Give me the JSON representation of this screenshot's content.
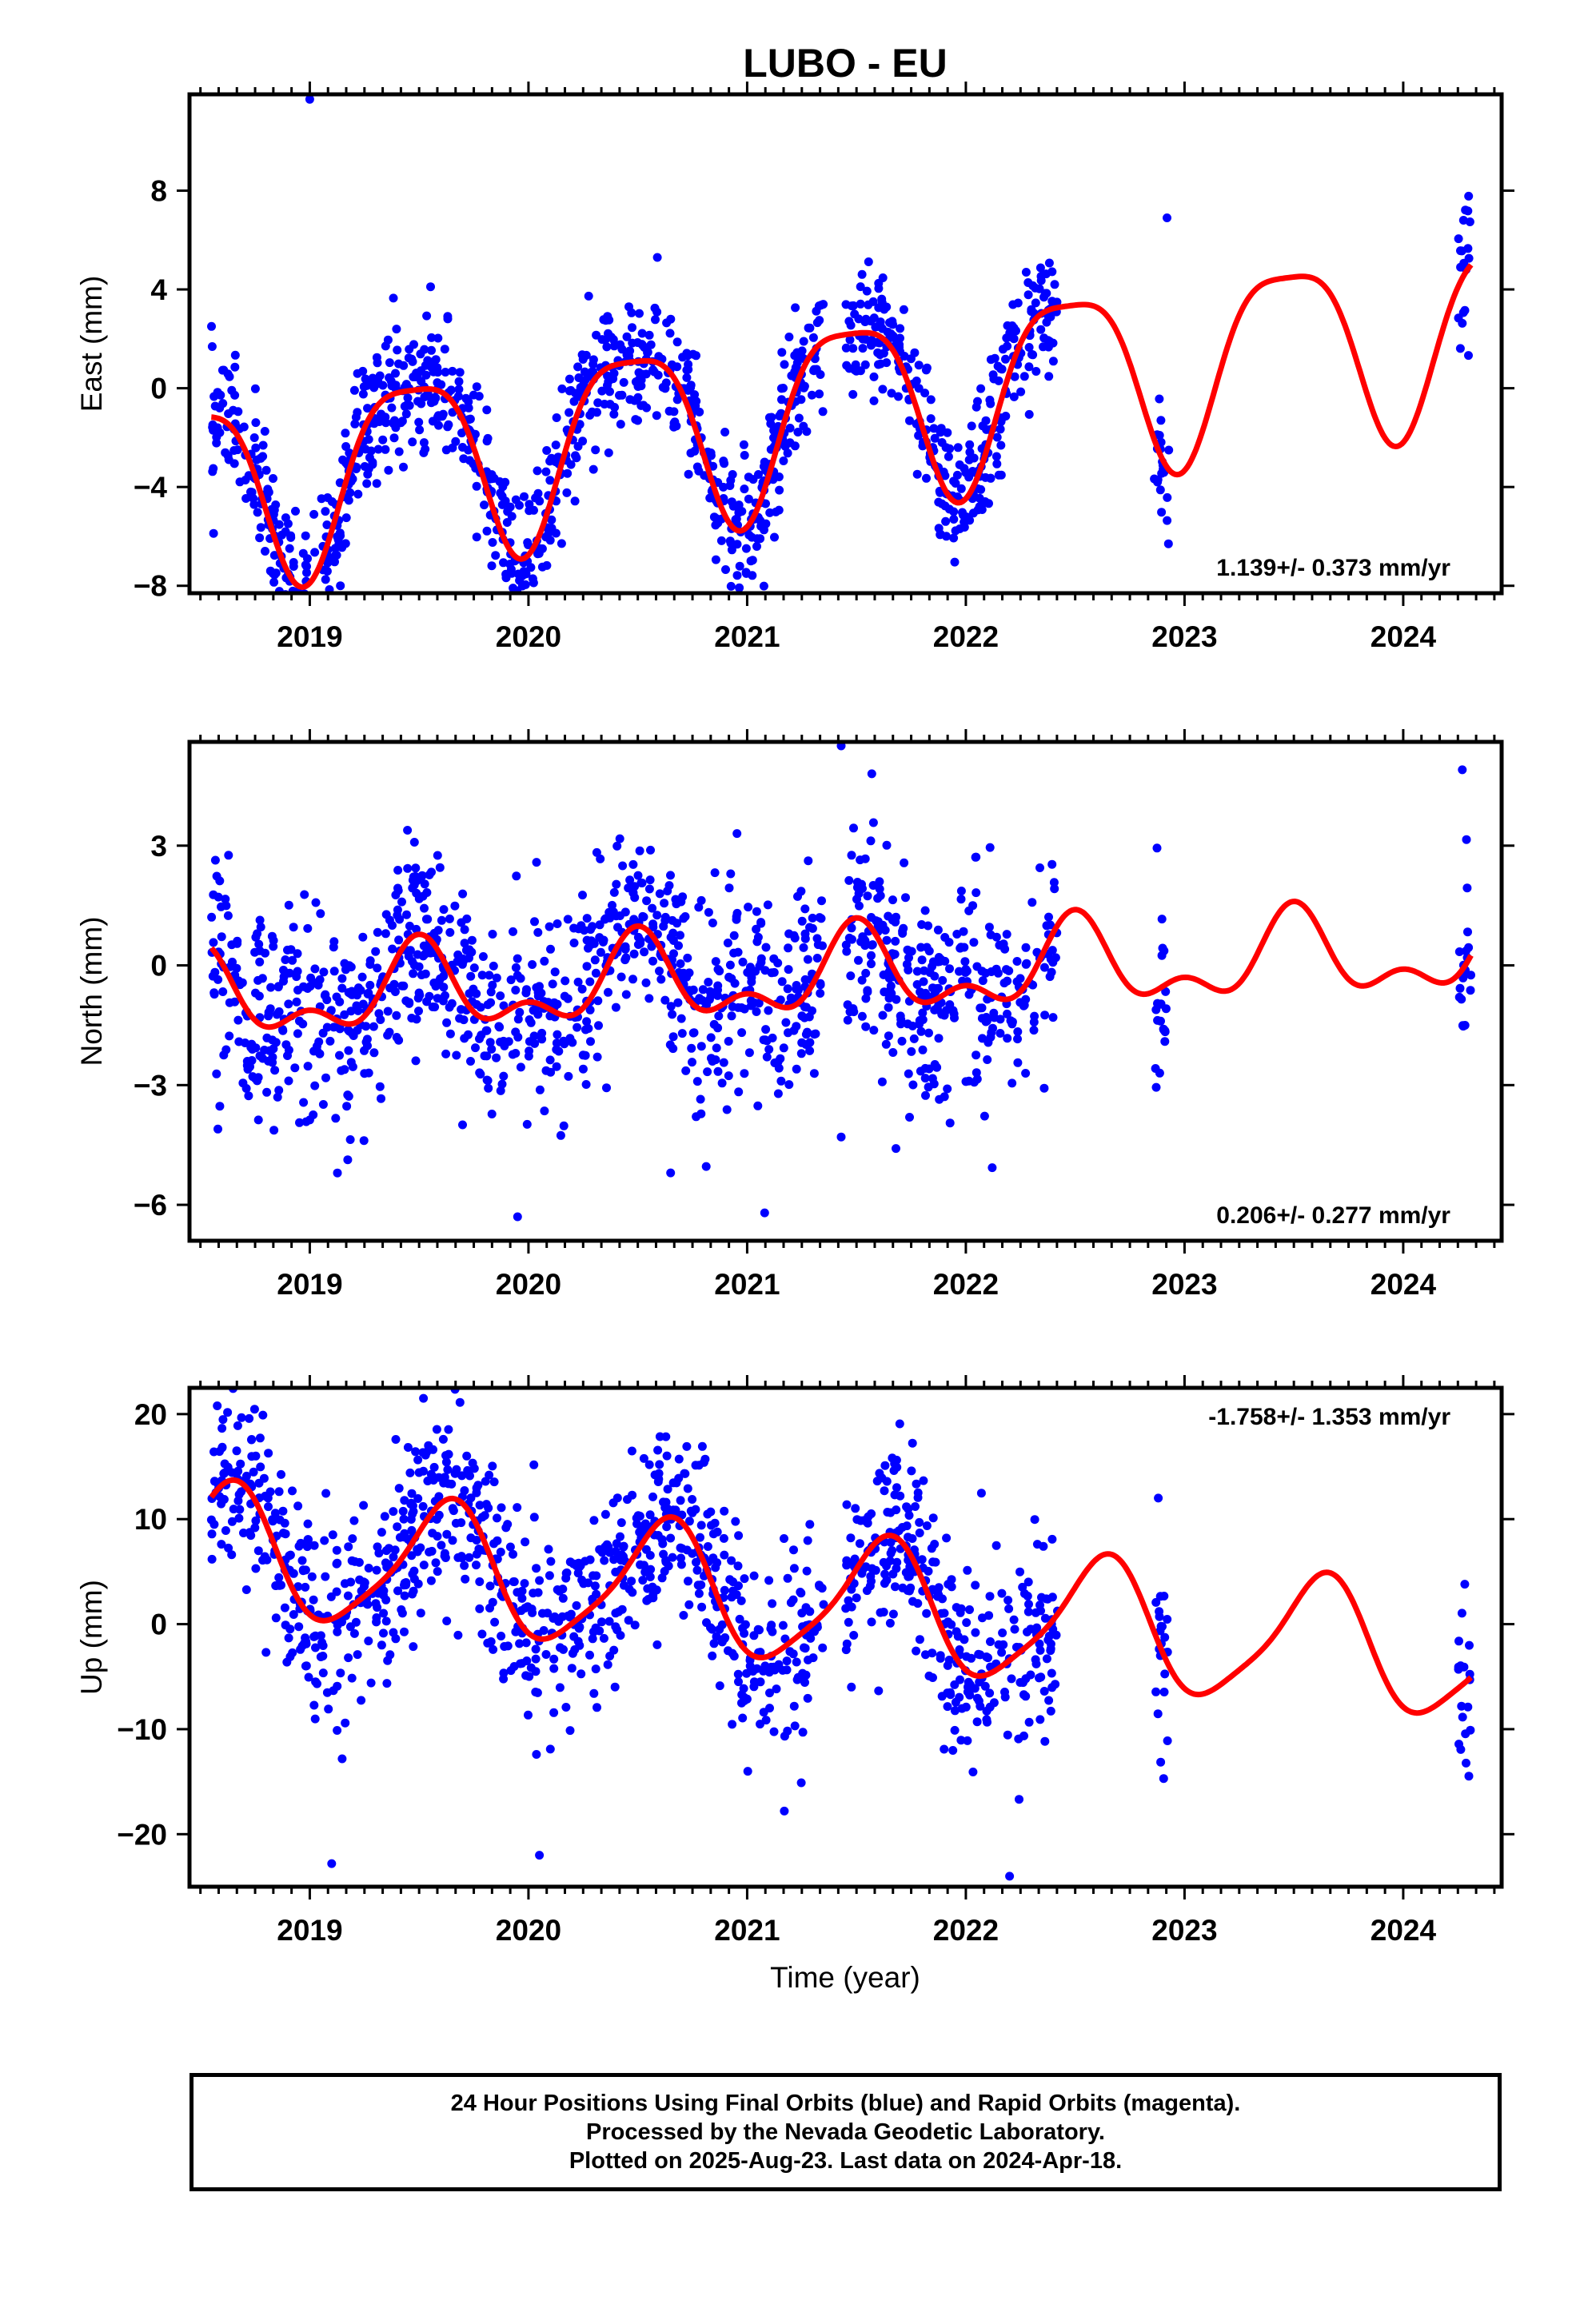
{
  "title": "LUBO - EU",
  "xlabel": "Time (year)",
  "colors": {
    "points": "#0000ff",
    "fit": "#ff0000",
    "frame": "#000000"
  },
  "footer": {
    "line1": "24 Hour Positions Using Final Orbits (blue) and Rapid Orbits (magenta).",
    "line2": "Processed by the Nevada Geodetic Laboratory.",
    "line3": "Plotted on 2025-Aug-23. Last data on 2024-Apr-18."
  },
  "chart_data": [
    {
      "type": "scatter",
      "component": "east",
      "ylabel": "East (mm)",
      "ylim": [
        -8.3,
        11.9
      ],
      "xlim": [
        2018.45,
        2024.45
      ],
      "yticks": [
        8,
        4,
        0,
        -4,
        -8
      ],
      "xticks": [
        2019,
        2020,
        2021,
        2022,
        2023,
        2024
      ],
      "rate_label": "1.139+/- 0.373 mm/yr",
      "rate_position": "bottom-right",
      "fit": {
        "offset": -0.8,
        "rate": 1.139,
        "annual_amp": 3.7,
        "annual_phase": 2019.47,
        "semiannual_amp": 0.9,
        "semiannual_phase": 2019.72
      },
      "noise": 1.35,
      "data_segments": [
        [
          2018.55,
          2019.45
        ],
        [
          2019.45,
          2020.42
        ],
        [
          2020.42,
          2021.35
        ],
        [
          2021.45,
          2022.42
        ],
        [
          2022.86,
          2022.93
        ],
        [
          2024.25,
          2024.31
        ]
      ],
      "outliers": [
        [
          2019.0,
          11.7
        ],
        [
          2019.14,
          -8.0
        ],
        [
          2022.92,
          6.9
        ]
      ]
    },
    {
      "type": "scatter",
      "component": "north",
      "ylabel": "North (mm)",
      "ylim": [
        -6.9,
        5.6
      ],
      "xlim": [
        2018.45,
        2024.45
      ],
      "yticks": [
        3,
        0,
        -3,
        -6
      ],
      "xticks": [
        2019,
        2020,
        2021,
        2022,
        2023,
        2024
      ],
      "rate_label": "0.206+/- 0.277 mm/yr",
      "rate_position": "bottom-right",
      "fit": {
        "offset": -0.3,
        "rate": 0.206,
        "annual_amp": 0.9,
        "annual_phase": 2019.5,
        "semiannual_amp": 0.55,
        "semiannual_phase": 2019.5
      },
      "noise": 1.3,
      "data_segments": [
        [
          2018.55,
          2019.45
        ],
        [
          2019.45,
          2020.42
        ],
        [
          2020.42,
          2021.35
        ],
        [
          2021.45,
          2022.42
        ],
        [
          2022.86,
          2022.93
        ],
        [
          2024.25,
          2024.31
        ]
      ],
      "outliers": [
        [
          2021.43,
          5.5
        ],
        [
          2021.57,
          4.8
        ],
        [
          2019.95,
          -6.3
        ],
        [
          2021.08,
          -6.2
        ],
        [
          2020.65,
          -5.2
        ],
        [
          2021.43,
          -4.3
        ],
        [
          2024.27,
          4.9
        ]
      ]
    },
    {
      "type": "scatter",
      "component": "up",
      "ylabel": "Up (mm)",
      "ylim": [
        -25.0,
        22.5
      ],
      "xlim": [
        2018.45,
        2024.45
      ],
      "yticks": [
        20,
        10,
        0,
        -10,
        -20
      ],
      "xticks": [
        2019,
        2020,
        2021,
        2022,
        2023,
        2024
      ],
      "rate_label": "-1.758+/- 1.353 mm/yr",
      "rate_position": "top-right",
      "fit": {
        "offset": 2.2,
        "rate": -1.758,
        "annual_amp": 6.0,
        "annual_phase": 2019.62,
        "semiannual_amp": 1.2,
        "semiannual_phase": 2019.7
      },
      "noise": 4.6,
      "data_segments": [
        [
          2018.55,
          2019.45
        ],
        [
          2019.45,
          2020.42
        ],
        [
          2020.42,
          2021.35
        ],
        [
          2021.45,
          2022.42
        ],
        [
          2022.86,
          2022.93
        ],
        [
          2024.25,
          2024.31
        ]
      ],
      "outliers": [
        [
          2019.52,
          21.5
        ],
        [
          2019.1,
          -22.8
        ],
        [
          2020.05,
          -22.0
        ],
        [
          2022.2,
          -24.0
        ],
        [
          2021.17,
          -17.8
        ],
        [
          2022.88,
          12.0
        ]
      ]
    }
  ]
}
